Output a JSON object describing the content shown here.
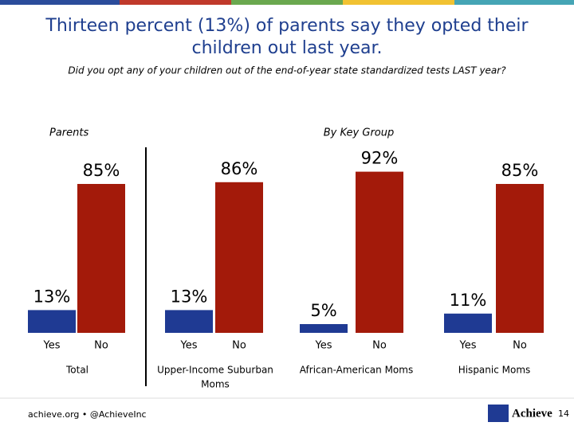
{
  "chart_data": {
    "type": "bar",
    "title": [
      "Thirteen percent (13%) of parents say they opted their",
      "children out last year."
    ],
    "subtitle": "Did you opt any of your children out of the end-of-year state standardized tests LAST year?",
    "left_label": "Parents",
    "right_label": "By Key Group",
    "groups": [
      [
        "Total"
      ],
      [
        "Upper-Income Suburban",
        "Moms"
      ],
      [
        "African-American Moms"
      ],
      [
        "Hispanic Moms"
      ]
    ],
    "series": [
      {
        "name": "Yes",
        "color": "#1f3a93",
        "values": [
          13,
          13,
          5,
          11
        ],
        "value_labels": [
          "13%",
          "13%",
          "5%",
          "11%"
        ]
      },
      {
        "name": "No",
        "color": "#a31a0a",
        "values": [
          85,
          86,
          92,
          85
        ],
        "value_labels": [
          "85%",
          "86%",
          "92%",
          "85%"
        ]
      }
    ]
  },
  "footer": {
    "handle": "achieve.org • @AchieveInc",
    "logo": "Achieve",
    "page": 14
  }
}
